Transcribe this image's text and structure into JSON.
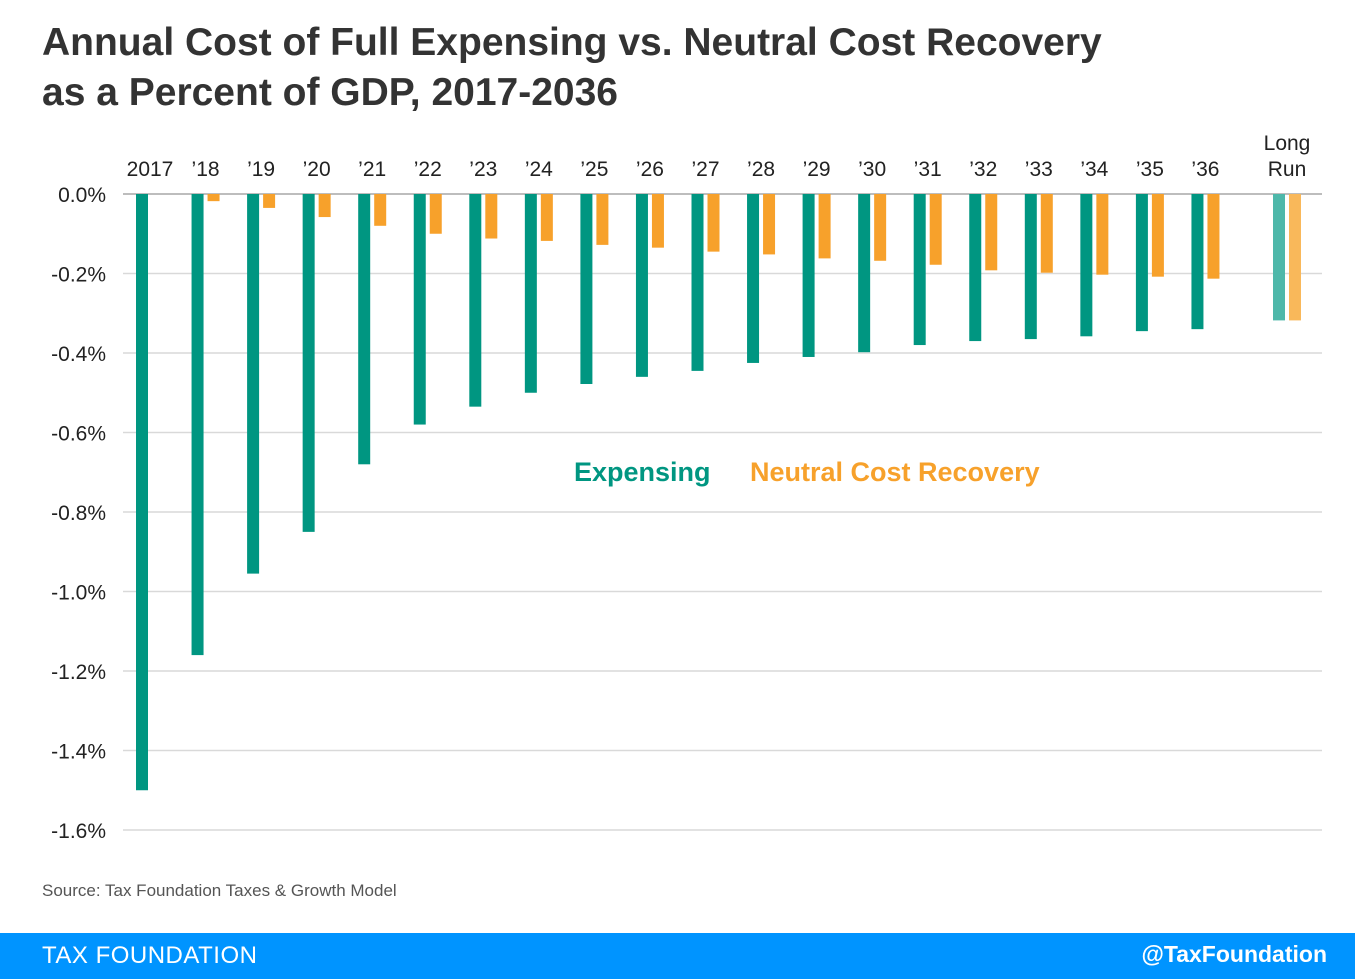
{
  "title_lines": [
    "Annual Cost of Full Expensing vs. Neutral Cost Recovery",
    "as a Percent of GDP, 2017-2036"
  ],
  "source": "Source: Tax Foundation Taxes & Growth Model",
  "footer": {
    "brand": "TAX FOUNDATION",
    "handle": "@TaxFoundation"
  },
  "colors": {
    "expensing": "#009681",
    "neutral": "#f7a12b",
    "expensing_longrun": "#4eb8aa",
    "neutral_longrun": "#f9b85a",
    "grid": "#d9d9d9",
    "footer": "#0094ff"
  },
  "chart_data": {
    "type": "bar",
    "title": "Annual Cost of Full Expensing vs. Neutral Cost Recovery as a Percent of GDP, 2017-2036",
    "categories": [
      "2017",
      "’18",
      "’19",
      "’20",
      "’21",
      "’22",
      "’23",
      "’24",
      "’25",
      "’26",
      "’27",
      "’28",
      "’29",
      "’30",
      "’31",
      "’32",
      "’33",
      "’34",
      "’35",
      "’36",
      "Long Run"
    ],
    "series": [
      {
        "name": "Expensing",
        "values": [
          -1.5,
          -1.16,
          -0.955,
          -0.85,
          -0.68,
          -0.58,
          -0.535,
          -0.5,
          -0.478,
          -0.46,
          -0.445,
          -0.425,
          -0.41,
          -0.398,
          -0.38,
          -0.37,
          -0.365,
          -0.358,
          -0.345,
          -0.34,
          -0.318
        ]
      },
      {
        "name": "Neutral Cost Recovery",
        "values": [
          0,
          -0.018,
          -0.035,
          -0.058,
          -0.08,
          -0.1,
          -0.112,
          -0.118,
          -0.128,
          -0.135,
          -0.145,
          -0.152,
          -0.162,
          -0.168,
          -0.178,
          -0.192,
          -0.198,
          -0.203,
          -0.208,
          -0.213,
          -0.318
        ]
      }
    ],
    "ylim": [
      -1.6,
      0.0
    ],
    "yticks": [
      0.0,
      -0.2,
      -0.4,
      -0.6,
      -0.8,
      -1.0,
      -1.2,
      -1.4,
      -1.6
    ],
    "ytick_labels": [
      "0.0%",
      "-0.2%",
      "-0.4%",
      "-0.6%",
      "-0.8%",
      "-1.0%",
      "-1.2%",
      "-1.4%",
      "-1.6%"
    ],
    "xlabel": "",
    "ylabel": "",
    "grid": true,
    "legend_position": "center"
  }
}
